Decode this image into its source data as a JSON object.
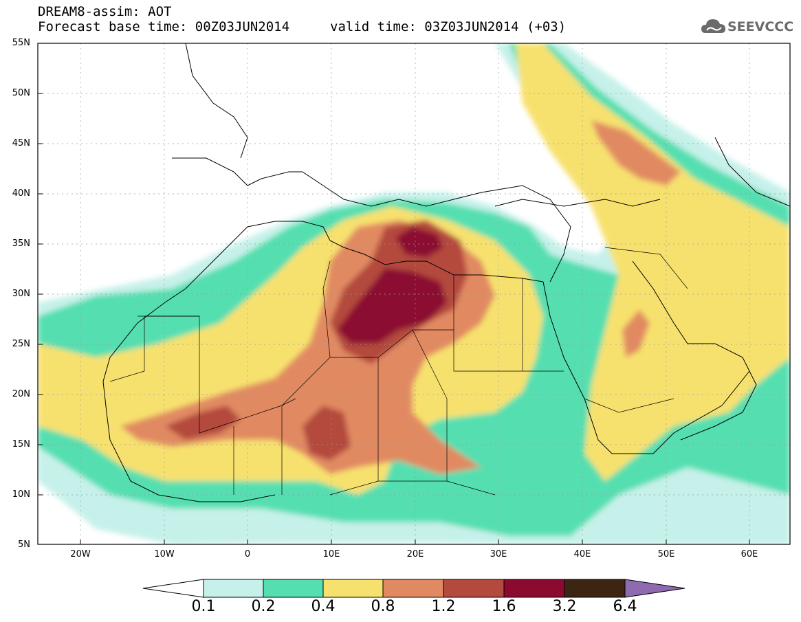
{
  "header": {
    "title": "DREAM8-assim: AOT",
    "base_time": "Forecast base time: 00Z03JUN2014",
    "valid_time": "valid time: 03Z03JUN2014 (+03)"
  },
  "logo": {
    "text": "SEEVCCC",
    "icon": "cloud-icon"
  },
  "map": {
    "lat_labels": [
      "55N",
      "50N",
      "45N",
      "40N",
      "35N",
      "30N",
      "25N",
      "20N",
      "15N",
      "10N",
      "5N"
    ],
    "lon_labels": [
      "20W",
      "10W",
      "0",
      "10E",
      "20E",
      "30E",
      "40E",
      "50E",
      "60E"
    ],
    "lon_range": [
      -25,
      65
    ],
    "lat_range": [
      5,
      55
    ],
    "variable": "Aerosol optical thickness (AOT)"
  },
  "colorbar": {
    "labels": [
      "0.1",
      "0.2",
      "0.4",
      "0.8",
      "1.2",
      "1.6",
      "3.2",
      "6.4"
    ],
    "colors": [
      "#c6f1ea",
      "#55dfb0",
      "#f7e16e",
      "#e18a62",
      "#b4493e",
      "#8b0a30",
      "#3c2513",
      "#8e6bb0"
    ],
    "below_color": "#ffffff"
  }
}
